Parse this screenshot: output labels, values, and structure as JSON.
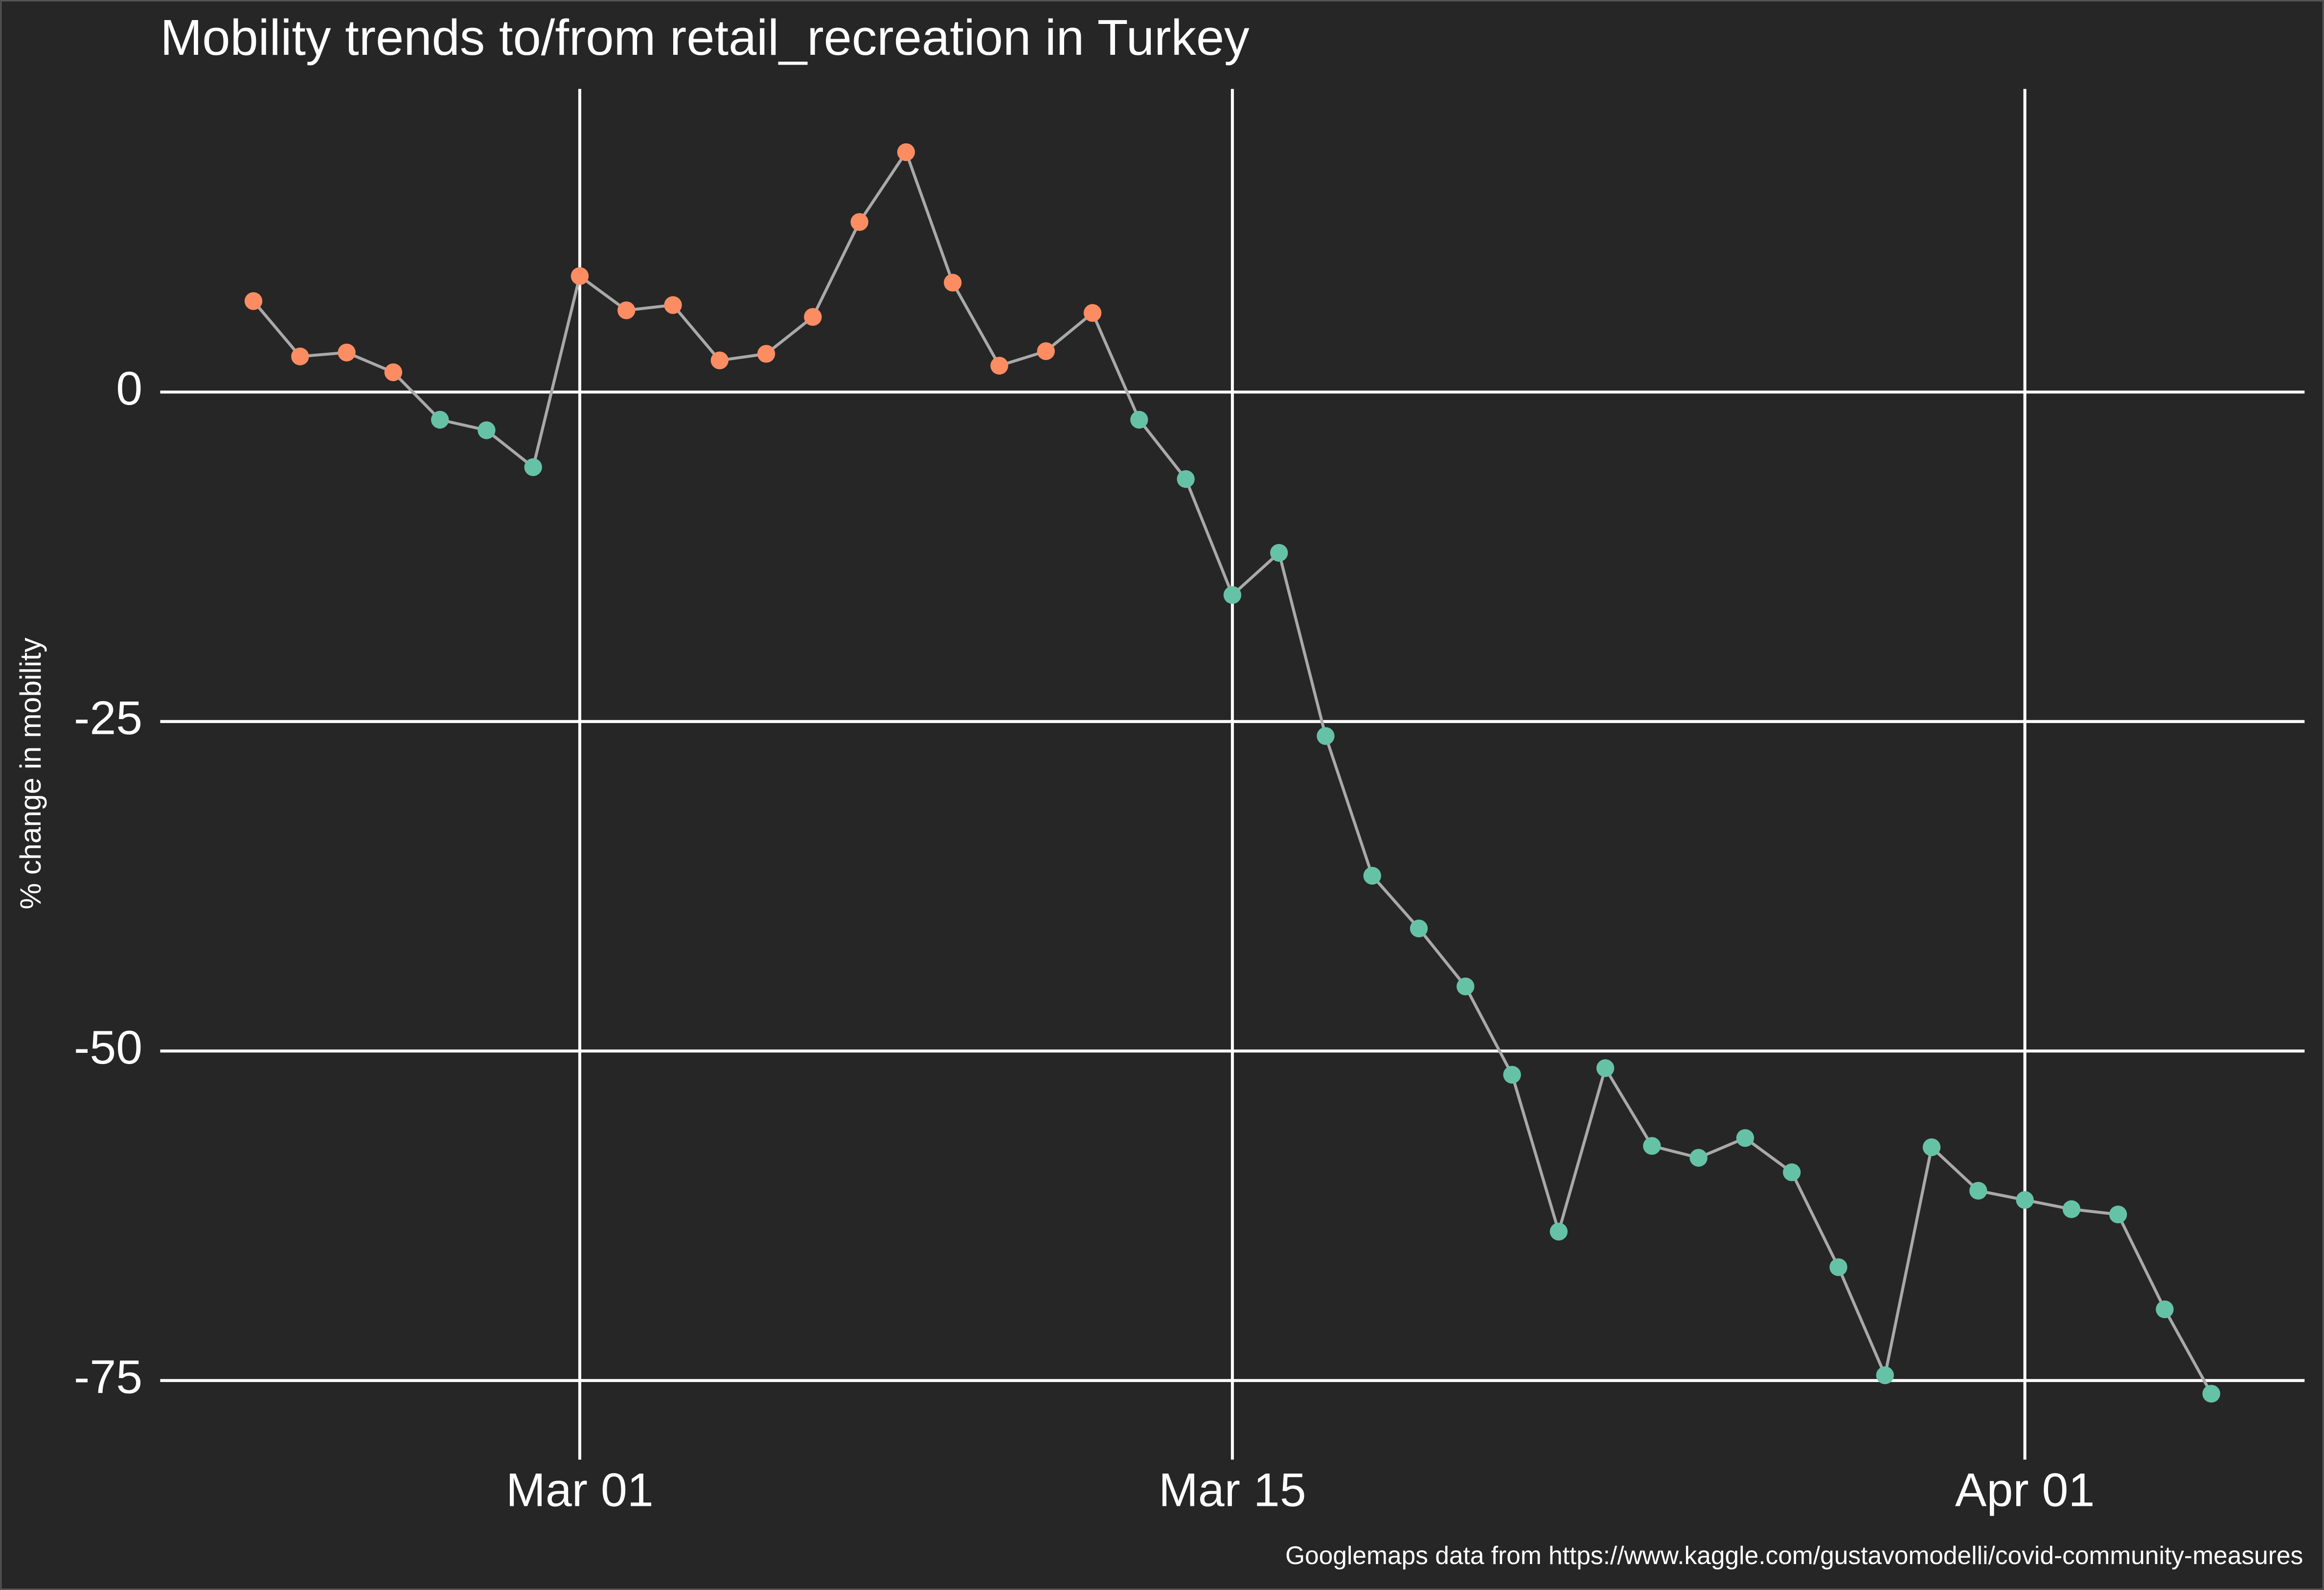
{
  "chart_data": {
    "type": "line",
    "title": "Mobility trends to/from retail_recreation in Turkey",
    "y_label": "% change in mobility",
    "caption": "Googlemaps data from https://www.kaggle.com/gustavomodelli/covid-community-measures",
    "x": [
      "02-23",
      "02-24",
      "02-25",
      "02-26",
      "02-27",
      "02-28",
      "02-29",
      "03-01",
      "03-02",
      "03-03",
      "03-04",
      "03-05",
      "03-06",
      "03-07",
      "03-08",
      "03-09",
      "03-10",
      "03-11",
      "03-12",
      "03-13",
      "03-14",
      "03-15",
      "03-16",
      "03-17",
      "03-18",
      "03-19",
      "03-20",
      "03-21",
      "03-22",
      "03-23",
      "03-24",
      "03-25",
      "03-26",
      "03-27",
      "03-28",
      "03-29",
      "03-30",
      "03-31",
      "04-01",
      "04-02",
      "04-03",
      "04-04",
      "04-05"
    ],
    "values": [
      6.9,
      2.7,
      3.0,
      1.5,
      -2.1,
      -2.9,
      -5.7,
      8.8,
      6.2,
      6.6,
      2.4,
      2.9,
      5.7,
      12.9,
      18.2,
      8.3,
      2.0,
      3.1,
      6.0,
      -2.1,
      -6.6,
      -15.4,
      -12.2,
      -26.1,
      -36.7,
      -40.7,
      -45.1,
      -51.8,
      -63.7,
      -51.3,
      -57.2,
      -58.1,
      -56.6,
      -59.2,
      -66.4,
      -74.6,
      -57.3,
      -60.6,
      -61.3,
      -62.0,
      -62.4,
      -69.6,
      -76.0
    ],
    "xlim": [
      "02-21",
      "04-07"
    ],
    "xticks": [
      {
        "value": "03-01",
        "label": "Mar 01"
      },
      {
        "value": "03-15",
        "label": "Mar 15"
      },
      {
        "value": "04-01",
        "label": "Apr 01"
      }
    ],
    "ylim": [
      -81,
      23
    ],
    "yticks": [
      -75,
      -50,
      -25,
      0
    ],
    "grid": true,
    "line_color": "#a9a9a9",
    "point_color_positive": "#fc8d62",
    "point_color_negative": "#66c2a5"
  }
}
